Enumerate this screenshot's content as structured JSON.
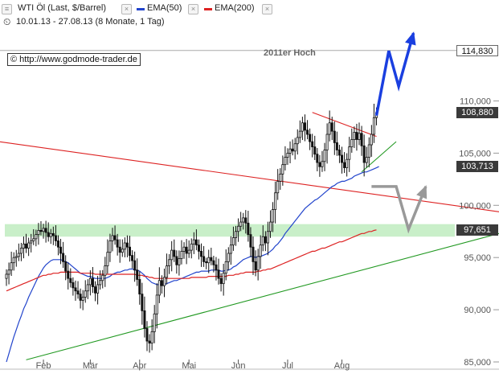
{
  "header": {
    "instrument": "WTI Öl (Last, $/Barrel)",
    "range": "10.01.13 - 27.08.13 (8 Monate, 1 Tag)",
    "ema50_label": "EMA(50)",
    "ema200_label": "EMA(200)"
  },
  "credit": "© http://www.godmode-trader.de",
  "annotation_high": "2011er Hoch",
  "colors": {
    "candle": "#111111",
    "ema50": "#2244cc",
    "ema200": "#dd2222",
    "trend_red": "#dd2222",
    "trend_green": "#229922",
    "support_zone": "#c9efc9",
    "arrow_blue": "#1a3fe0",
    "arrow_grey": "#999999"
  },
  "price_tags": [
    {
      "label": "114,830",
      "value": 114.83,
      "style": "white"
    },
    {
      "label": "108,880",
      "value": 108.88,
      "style": "dark"
    },
    {
      "label": "103,713",
      "value": 103.713,
      "style": "dark"
    },
    {
      "label": "97,651",
      "value": 97.651,
      "style": "dark"
    }
  ],
  "chart_data": {
    "type": "candlestick",
    "title": "WTI Öl (Last, $/Barrel)",
    "ylim": [
      85,
      117
    ],
    "y_ticks": [
      {
        "label": "85,000",
        "value": 85
      },
      {
        "label": "90,000",
        "value": 90
      },
      {
        "label": "95,000",
        "value": 95
      },
      {
        "label": "100,000",
        "value": 100
      },
      {
        "label": "105,000",
        "value": 105
      },
      {
        "label": "110,000",
        "value": 110
      }
    ],
    "x_ticks": [
      "Feb",
      "Mär",
      "Apr",
      "Mai",
      "Jun",
      "Jul",
      "Aug"
    ],
    "x_tick_index": [
      15,
      34,
      54,
      74,
      94,
      114,
      136
    ],
    "close": [
      93.4,
      93.8,
      94.5,
      95.0,
      95.1,
      95.4,
      95.9,
      96.3,
      95.9,
      96.4,
      96.6,
      96.8,
      97.2,
      97.6,
      97.5,
      97.8,
      97.4,
      97.0,
      97.3,
      97.1,
      96.6,
      96.0,
      95.4,
      94.6,
      93.7,
      93.0,
      92.6,
      92.1,
      91.8,
      91.5,
      90.9,
      91.2,
      91.8,
      92.4,
      93.0,
      92.2,
      91.6,
      92.4,
      92.8,
      93.3,
      94.2,
      95.5,
      96.6,
      97.1,
      96.7,
      96.0,
      95.5,
      95.8,
      96.4,
      96.0,
      95.2,
      94.7,
      93.8,
      92.9,
      91.5,
      89.9,
      88.2,
      87.0,
      86.8,
      87.9,
      89.6,
      91.4,
      92.8,
      92.3,
      93.1,
      94.2,
      94.8,
      95.7,
      95.1,
      94.3,
      94.9,
      95.6,
      96.0,
      95.4,
      95.7,
      96.3,
      96.7,
      96.2,
      95.6,
      95.1,
      94.6,
      94.5,
      95.0,
      94.7,
      94.3,
      93.8,
      93.0,
      92.5,
      93.5,
      94.6,
      95.4,
      96.2,
      96.9,
      97.5,
      98.0,
      98.4,
      98.8,
      98.3,
      97.2,
      96.0,
      94.6,
      93.8,
      95.1,
      96.2,
      97.0,
      96.4,
      97.5,
      98.4,
      99.6,
      101.2,
      102.3,
      103.0,
      103.9,
      104.6,
      105.0,
      105.4,
      105.2,
      105.9,
      106.5,
      107.1,
      107.9,
      107.2,
      106.8,
      106.1,
      105.6,
      104.9,
      104.1,
      103.7,
      104.2,
      105.3,
      106.8,
      107.9,
      107.1,
      106.0,
      105.3,
      104.8,
      104.1,
      103.6,
      104.4,
      105.6,
      106.3,
      107.0,
      106.3,
      106.9,
      105.7,
      104.1,
      104.6,
      105.8,
      106.8,
      108.4,
      108.88
    ],
    "series": [
      {
        "name": "EMA(50)",
        "values": [
          85.0,
          85.8,
          86.6,
          87.4,
          88.1,
          88.8,
          89.4,
          90.1,
          90.6,
          91.2,
          91.7,
          92.2,
          92.7,
          93.2,
          93.6,
          94.0,
          94.3,
          94.5,
          94.7,
          94.8,
          94.8,
          94.8,
          94.8,
          94.7,
          94.6,
          94.5,
          94.3,
          94.1,
          93.9,
          93.7,
          93.5,
          93.4,
          93.3,
          93.2,
          93.2,
          93.1,
          93.0,
          93.0,
          93.0,
          93.0,
          93.0,
          93.1,
          93.2,
          93.4,
          93.5,
          93.6,
          93.6,
          93.7,
          93.8,
          93.8,
          93.9,
          93.9,
          93.8,
          93.8,
          93.7,
          93.5,
          93.3,
          93.0,
          92.8,
          92.6,
          92.5,
          92.4,
          92.4,
          92.4,
          92.4,
          92.5,
          92.6,
          92.7,
          92.8,
          92.8,
          92.9,
          93.0,
          93.1,
          93.2,
          93.3,
          93.4,
          93.5,
          93.6,
          93.6,
          93.7,
          93.7,
          93.7,
          93.7,
          93.8,
          93.8,
          93.8,
          93.8,
          93.7,
          93.7,
          93.8,
          93.8,
          93.9,
          94.1,
          94.2,
          94.4,
          94.6,
          94.8,
          94.9,
          95.0,
          95.1,
          95.1,
          95.0,
          95.1,
          95.1,
          95.2,
          95.3,
          95.4,
          95.6,
          95.8,
          96.1,
          96.3,
          96.6,
          96.9,
          97.3,
          97.6,
          97.9,
          98.2,
          98.5,
          98.8,
          99.1,
          99.4,
          99.7,
          99.9,
          100.1,
          100.3,
          100.5,
          100.6,
          100.8,
          101.0,
          101.2,
          101.4,
          101.6,
          101.8,
          101.9,
          102.1,
          102.2,
          102.3,
          102.3,
          102.4,
          102.5,
          102.6,
          102.8,
          102.9,
          103.0,
          103.1,
          103.2,
          103.2,
          103.3,
          103.4,
          103.5,
          103.6,
          103.713
        ]
      },
      {
        "name": "EMA(200)",
        "values": [
          91.8,
          91.9,
          92.0,
          92.1,
          92.2,
          92.3,
          92.4,
          92.5,
          92.6,
          92.7,
          92.8,
          92.9,
          93.0,
          93.1,
          93.2,
          93.3,
          93.3,
          93.4,
          93.4,
          93.5,
          93.5,
          93.5,
          93.6,
          93.6,
          93.6,
          93.6,
          93.6,
          93.6,
          93.6,
          93.6,
          93.5,
          93.5,
          93.5,
          93.5,
          93.5,
          93.5,
          93.4,
          93.4,
          93.4,
          93.4,
          93.4,
          93.4,
          93.4,
          93.4,
          93.4,
          93.4,
          93.4,
          93.4,
          93.4,
          93.4,
          93.4,
          93.4,
          93.4,
          93.3,
          93.3,
          93.3,
          93.2,
          93.2,
          93.1,
          93.1,
          93.0,
          93.0,
          93.0,
          93.0,
          93.0,
          93.0,
          93.0,
          93.0,
          93.0,
          93.0,
          93.0,
          93.0,
          93.0,
          93.0,
          93.0,
          93.1,
          93.1,
          93.1,
          93.1,
          93.1,
          93.1,
          93.1,
          93.2,
          93.2,
          93.2,
          93.2,
          93.2,
          93.2,
          93.2,
          93.2,
          93.3,
          93.3,
          93.3,
          93.4,
          93.4,
          93.5,
          93.5,
          93.6,
          93.6,
          93.6,
          93.6,
          93.6,
          93.7,
          93.7,
          93.8,
          93.8,
          93.9,
          93.9,
          94.0,
          94.1,
          94.2,
          94.3,
          94.4,
          94.5,
          94.6,
          94.7,
          94.8,
          94.9,
          95.0,
          95.1,
          95.2,
          95.3,
          95.4,
          95.5,
          95.6,
          95.6,
          95.7,
          95.8,
          95.9,
          95.9,
          96.0,
          96.1,
          96.2,
          96.3,
          96.4,
          96.5,
          96.5,
          96.6,
          96.7,
          96.8,
          96.9,
          97.0,
          97.1,
          97.2,
          97.3,
          97.3,
          97.4,
          97.5,
          97.5,
          97.6,
          97.651
        ]
      }
    ],
    "lines": [
      {
        "name": "red-downtrend",
        "from": [
          0,
          106.0
        ],
        "to": [
          160,
          100.7
        ]
      },
      {
        "name": "red-wedge-top",
        "from": [
          124,
          108.9
        ],
        "to": [
          150,
          106.6
        ]
      },
      {
        "name": "green-wedge-bottom",
        "from": [
          144,
          103.2
        ],
        "to": [
          158,
          106.1
        ]
      },
      {
        "name": "green-uptrend",
        "from": [
          8,
          85.2
        ],
        "to": [
          160,
          94.8
        ]
      },
      {
        "name": "level-114830",
        "value": 114.83
      },
      {
        "name": "support-zone",
        "band": [
          97.0,
          98.2
        ]
      }
    ],
    "scenario_arrows": [
      {
        "name": "bullish",
        "color": "blue",
        "points": [
          [
            150,
            108.6
          ],
          [
            155,
            114.8
          ],
          [
            159,
            111.4
          ],
          [
            165,
            116.5
          ]
        ]
      },
      {
        "name": "bearish",
        "color": "grey",
        "points": [
          [
            148,
            101.8
          ],
          [
            158,
            101.8
          ],
          [
            163,
            97.7
          ],
          [
            170,
            101.8
          ]
        ]
      }
    ]
  }
}
